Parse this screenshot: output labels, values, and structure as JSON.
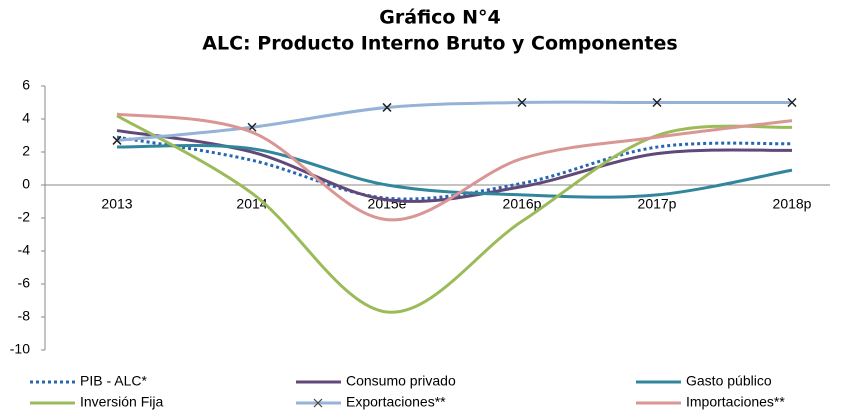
{
  "chart_data": {
    "type": "line",
    "title": "Gráfico N°4",
    "subtitle": "ALC: Producto Interno Bruto y Componentes",
    "categories": [
      "2013",
      "2014",
      "2015e",
      "2016p",
      "2017p",
      "2018p"
    ],
    "series": [
      {
        "name": "PIB - ALC*",
        "color": "#2566b0",
        "dash": "dotted",
        "values": [
          2.9,
          1.5,
          -0.8,
          0.1,
          2.3,
          2.5
        ]
      },
      {
        "name": "Consumo privado",
        "color": "#60497a",
        "values": [
          3.3,
          2.0,
          -0.9,
          -0.1,
          1.9,
          2.1
        ]
      },
      {
        "name": "Gasto público",
        "color": "#31859c",
        "values": [
          2.3,
          2.2,
          0.0,
          -0.6,
          -0.6,
          0.9
        ]
      },
      {
        "name": "Inversión Fija",
        "color": "#9bbb59",
        "values": [
          4.2,
          -0.5,
          -7.7,
          -2.2,
          3.0,
          3.5
        ]
      },
      {
        "name": "Exportaciones**",
        "color": "#95b3d7",
        "marker": "x",
        "values": [
          2.7,
          3.5,
          4.7,
          5.0,
          5.0,
          5.0
        ]
      },
      {
        "name": "Importaciones**",
        "color": "#d99694",
        "values": [
          4.3,
          3.2,
          -2.1,
          1.6,
          2.9,
          3.9
        ]
      }
    ],
    "ylim": [
      -10,
      6
    ],
    "yticks": [
      -10,
      -8,
      -6,
      -4,
      -2,
      0,
      2,
      4,
      6
    ],
    "grid": false,
    "legend": "bottom"
  }
}
